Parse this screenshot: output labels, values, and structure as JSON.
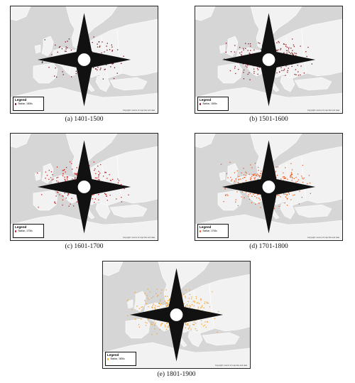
{
  "panels": [
    {
      "caption": "(a) 1401-1500",
      "color": "#7a0a18",
      "seed": 11,
      "count": 150,
      "legend_title": "Legend",
      "legend_item": "Station, 1500s",
      "copyright": "Copyright: source of map tiles and data"
    },
    {
      "caption": "(b) 1501-1600",
      "color": "#8e0f1a",
      "seed": 23,
      "count": 220,
      "legend_title": "Legend",
      "legend_item": "Station, 1500s",
      "copyright": "Copyright: source of map tiles and data"
    },
    {
      "caption": "(c) 1601-1700",
      "color": "#cc1b1b",
      "seed": 37,
      "count": 230,
      "legend_title": "Legend",
      "legend_item": "Station, 1700s",
      "copyright": "Copyright: source of map tiles and data"
    },
    {
      "caption": "(d) 1701-1800",
      "color": "#ef5a1e",
      "seed": 41,
      "count": 320,
      "legend_title": "Legend",
      "legend_item": "Station, 1700s",
      "copyright": "Copyright: source of map tiles and data"
    },
    {
      "caption": "(e) 1801-1900",
      "color": "#f4a52a",
      "seed": 53,
      "count": 380,
      "legend_title": "Legend",
      "legend_item": "Station, 1800s",
      "copyright": "Copyright: source of map tiles and data"
    }
  ],
  "colors": {
    "land": "#f2f2f2",
    "sea": "#d6d6d6",
    "border": "#ffffff"
  }
}
